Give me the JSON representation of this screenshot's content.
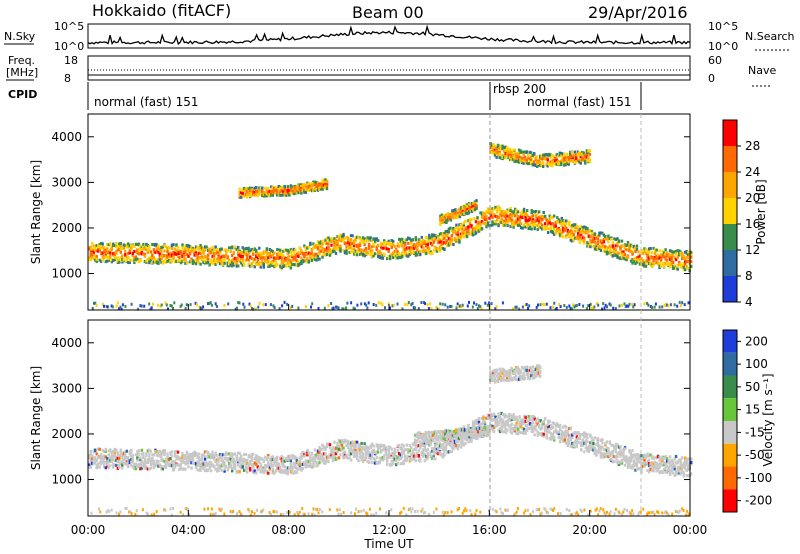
{
  "header": {
    "station": "Hokkaido (fitACF)",
    "beam": "Beam 00",
    "date": "29/Apr/2016"
  },
  "top_panels": {
    "nsky_label": "N.Sky",
    "nsky_ticks": [
      "10^5",
      "10^0"
    ],
    "nsearch_label": "N.Search",
    "nsearch_ticks": [
      "10^5",
      "10^0"
    ],
    "freq_label": "Freq.",
    "freq_unit": "[MHz]",
    "freq_ticks": [
      "18",
      "8"
    ],
    "nave_label": "Nave",
    "nave_ticks": [
      "60",
      "0"
    ],
    "cpid_label": "CPID",
    "cpid_segments": [
      "normal (fast) 151",
      "rbsp 200",
      "normal (fast) 151"
    ],
    "cpid_segment_times": [
      0,
      16,
      22.5
    ]
  },
  "chart_data": [
    {
      "type": "heatmap",
      "title": "",
      "xlabel": "Time UT",
      "ylabel": "Slant Range [km]",
      "quantity": "Power",
      "colorbar_label": "Power [dB]",
      "colorbar_ticks": [
        "28",
        "24",
        "20",
        "16",
        "12",
        "8",
        "4"
      ],
      "colorbar_colors": [
        "#ff0000",
        "#ff6a00",
        "#ffa500",
        "#ffd200",
        "#3a8c4c",
        "#2f6da0",
        "#1e3cd8"
      ],
      "ylim": [
        200,
        4500
      ],
      "yticks": [
        1000,
        2000,
        3000,
        4000
      ],
      "xticks": [
        "00:00",
        "04:00",
        "08:00",
        "12:00",
        "16:00",
        "20:00",
        "00:00"
      ],
      "xlim_hours": [
        0,
        24
      ],
      "echo_bands": [
        {
          "t": [
            0,
            4,
            8,
            10,
            12,
            14,
            16,
            18,
            20,
            22,
            24
          ],
          "r": [
            1500,
            1450,
            1350,
            1700,
            1550,
            1700,
            2300,
            2200,
            1800,
            1400,
            1300
          ],
          "width": 300
        },
        {
          "t": [
            6,
            8,
            9.5
          ],
          "r": [
            2800,
            2850,
            3000
          ],
          "width": 150
        },
        {
          "t": [
            14,
            15.5
          ],
          "r": [
            2200,
            2550
          ],
          "width": 150
        },
        {
          "t": [
            16,
            18,
            20
          ],
          "r": [
            3750,
            3500,
            3600
          ],
          "width": 200
        }
      ]
    },
    {
      "type": "heatmap",
      "title": "",
      "xlabel": "Time UT",
      "ylabel": "Slant Range [km]",
      "quantity": "Velocity",
      "colorbar_label": "Velocity [m s⁻¹]",
      "colorbar_ticks": [
        "200",
        "100",
        "50",
        "15",
        "-15",
        "-50",
        "-100",
        "-200"
      ],
      "colorbar_colors": [
        "#1e3cd8",
        "#2f6da0",
        "#3a8c4c",
        "#67c639",
        "#c8c8c8",
        "#ffa500",
        "#ff6a00",
        "#ff0000"
      ],
      "ylim": [
        200,
        4500
      ],
      "yticks": [
        1000,
        2000,
        3000,
        4000
      ],
      "xticks": [
        "00:00",
        "04:00",
        "08:00",
        "12:00",
        "16:00",
        "20:00",
        "00:00"
      ],
      "xlim_hours": [
        0,
        24
      ],
      "echo_bands": [
        {
          "t": [
            0,
            4,
            8,
            10,
            12,
            14,
            16,
            18,
            20,
            22,
            24
          ],
          "r": [
            1500,
            1450,
            1350,
            1700,
            1550,
            1700,
            2300,
            2200,
            1800,
            1400,
            1300
          ],
          "width": 300
        },
        {
          "t": [
            13,
            16
          ],
          "r": [
            1950,
            2100
          ],
          "width": 150
        },
        {
          "t": [
            16,
            18
          ],
          "r": [
            3300,
            3400
          ],
          "width": 200
        }
      ]
    }
  ]
}
